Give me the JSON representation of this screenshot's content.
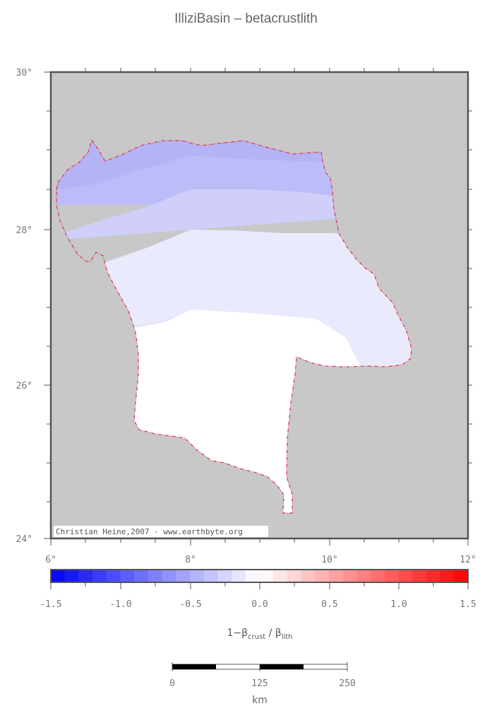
{
  "title": "IlliziBasin – betacrustlith",
  "map": {
    "lat_labels": [
      "30°",
      "28°",
      "26°",
      "24°"
    ],
    "lon_labels": [
      "6°",
      "8°",
      "10°",
      "12°"
    ],
    "credit": "Christian Heine,2007 - www.earthbyte.org",
    "background_color": "#c8c8c8",
    "outline_color": "#e0304a"
  },
  "colorbar": {
    "tick_labels": [
      "-1.5",
      "-1.0",
      "-0.5",
      "0.0",
      "0.5",
      "1.0",
      "1.5"
    ],
    "label_main": "1−β",
    "label_sub1": "crust",
    "label_mid": " / β",
    "label_sub2": "lith"
  },
  "scalebar": {
    "labels": [
      "0",
      "125",
      "250"
    ],
    "unit": "km"
  }
}
